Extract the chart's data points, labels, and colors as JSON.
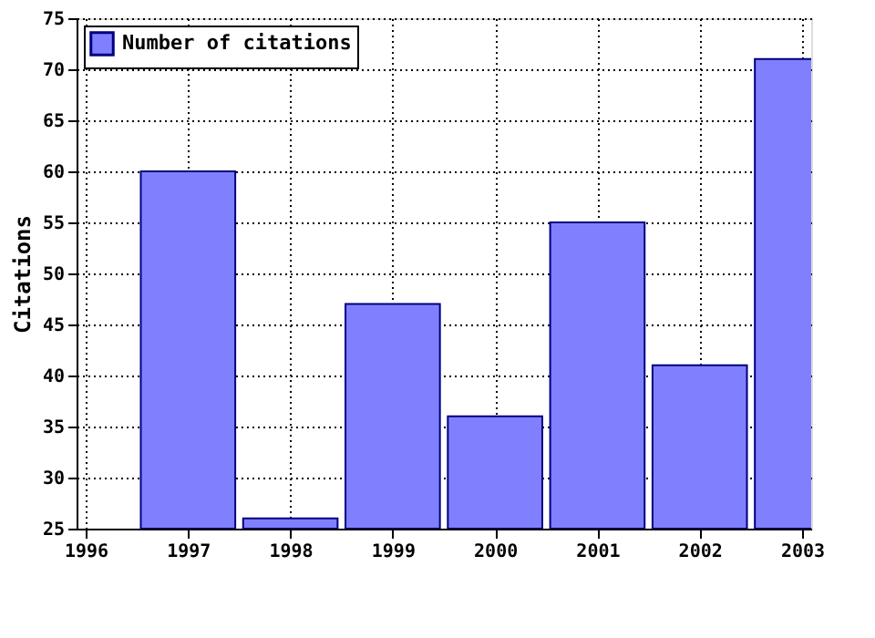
{
  "chart_data": {
    "type": "bar",
    "ylabel": "Citations",
    "x": [
      1997,
      1998,
      1999,
      2000,
      2001,
      2002,
      2003
    ],
    "series": [
      {
        "name": "Number of citations",
        "color": "#8080ff",
        "values": [
          60,
          26,
          47,
          36,
          55,
          41,
          71
        ]
      }
    ],
    "xlim": [
      1996,
      2003
    ],
    "xticks": [
      1996,
      1997,
      1998,
      1999,
      2000,
      2001,
      2002,
      2003
    ],
    "ylim": [
      25,
      75
    ],
    "yticks": [
      25,
      30,
      35,
      40,
      45,
      50,
      55,
      60,
      65,
      70,
      75
    ],
    "grid": true,
    "legend": "top left"
  }
}
